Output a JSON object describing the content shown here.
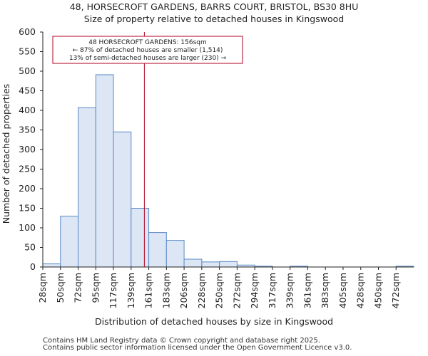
{
  "chart_data": {
    "type": "bar",
    "title_line1": "48, HORSECROFT GARDENS, BARRS COURT, BRISTOL, BS30 8HU",
    "title_line2": "Size of property relative to detached houses in Kingswood",
    "xlabel": "Distribution of detached houses by size in Kingswood",
    "ylabel": "Number of detached properties",
    "categories": [
      "28sqm",
      "50sqm",
      "72sqm",
      "95sqm",
      "117sqm",
      "139sqm",
      "161sqm",
      "183sqm",
      "206sqm",
      "228sqm",
      "250sqm",
      "272sqm",
      "294sqm",
      "317sqm",
      "339sqm",
      "361sqm",
      "383sqm",
      "405sqm",
      "428sqm",
      "450sqm",
      "472sqm"
    ],
    "values": [
      8,
      130,
      407,
      491,
      345,
      150,
      88,
      68,
      20,
      13,
      14,
      5,
      2,
      0,
      2,
      0,
      0,
      0,
      0,
      0,
      2
    ],
    "ylim": [
      0,
      600
    ],
    "yticks": [
      0,
      50,
      100,
      150,
      200,
      250,
      300,
      350,
      400,
      450,
      500,
      550,
      600
    ],
    "bar_fill": "#dce6f4",
    "bar_stroke": "#5b8ac6",
    "marker": {
      "category_position": 5.75,
      "color": "#b00020",
      "line1": "48 HORSECROFT GARDENS: 156sqm",
      "line2": "← 87% of detached houses are smaller (1,514)",
      "line3": "13% of semi-detached houses are larger (230) →"
    }
  },
  "footer": {
    "line1": "Contains HM Land Registry data © Crown copyright and database right 2025.",
    "line2": "Contains public sector information licensed under the Open Government Licence v3.0."
  }
}
